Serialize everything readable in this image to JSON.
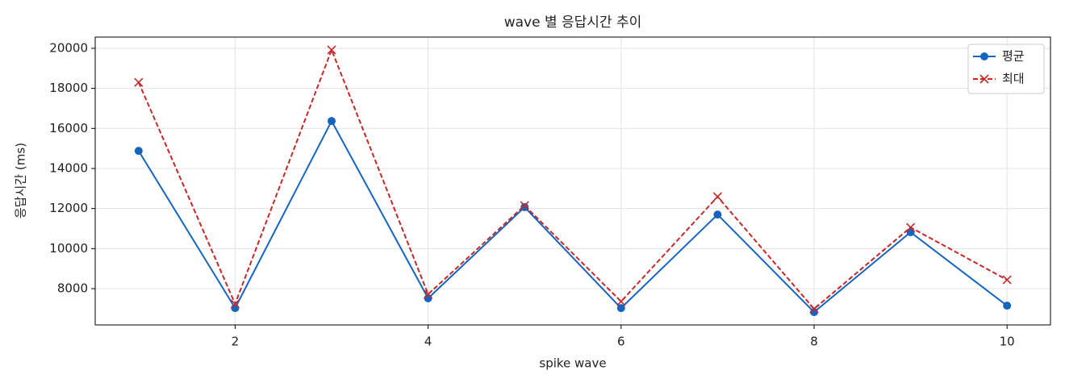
{
  "chart_data": {
    "type": "line",
    "title": "wave 별 응답시간 추이",
    "xlabel": "spike wave",
    "ylabel": "응답시간 (ms)",
    "x": [
      1,
      2,
      3,
      4,
      5,
      6,
      7,
      8,
      9,
      10
    ],
    "series": [
      {
        "name": "평균",
        "color": "#1565c0",
        "marker": "o",
        "linestyle": "solid",
        "values": [
          14880,
          7030,
          16370,
          7520,
          12070,
          7030,
          11700,
          6830,
          10820,
          7150
        ]
      },
      {
        "name": "최대",
        "color": "#c62828",
        "marker": "x",
        "linestyle": "dashed",
        "values": [
          18300,
          7240,
          19920,
          7720,
          12150,
          7360,
          12590,
          6990,
          11060,
          8440
        ]
      }
    ],
    "xlim": [
      0.55,
      10.45
    ],
    "xticks": [
      2,
      4,
      6,
      8,
      10
    ],
    "ylim": [
      6190,
      20560
    ],
    "yticks": [
      8000,
      10000,
      12000,
      14000,
      16000,
      18000,
      20000
    ],
    "grid": true,
    "legend": "upper right"
  }
}
